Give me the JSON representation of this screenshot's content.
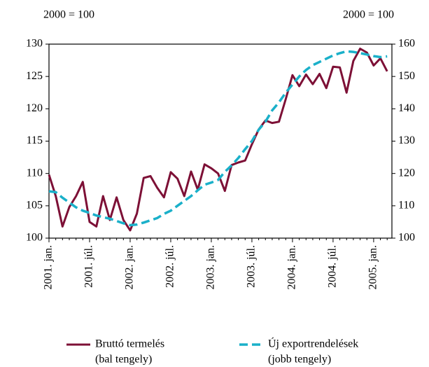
{
  "chart_data": {
    "type": "line",
    "ylabel": "2000 = 100",
    "y2label": "2000 = 100",
    "categories": [
      "2001. jan.",
      null,
      null,
      null,
      null,
      null,
      "2001. júl.",
      null,
      null,
      null,
      null,
      null,
      "2002. jan.",
      null,
      null,
      null,
      null,
      null,
      "2002. júl.",
      null,
      null,
      null,
      null,
      null,
      "2003. jan.",
      null,
      null,
      null,
      null,
      null,
      "2003. júl.",
      null,
      null,
      null,
      null,
      null,
      "2004. jan.",
      null,
      null,
      null,
      null,
      null,
      "2004. júl.",
      null,
      null,
      null,
      null,
      null,
      "2005. jan.",
      null,
      null
    ],
    "ylim": [
      100,
      130
    ],
    "yticks": [
      100,
      105,
      110,
      115,
      120,
      125,
      130
    ],
    "y2lim": [
      100,
      160
    ],
    "y2ticks": [
      100,
      110,
      120,
      130,
      140,
      150,
      160
    ],
    "series": [
      {
        "name": "Bruttó termelés",
        "sublabel": "(bal tengely)",
        "color": "#7d1036",
        "dashed": false,
        "values": [
          109.8,
          106.5,
          101.8,
          104.8,
          106.5,
          108.7,
          102.5,
          101.8,
          106.5,
          102.8,
          106.3,
          102.8,
          101.2,
          103.8,
          109.3,
          109.6,
          107.8,
          106.3,
          110.2,
          109.2,
          106.5,
          110.3,
          107.5,
          111.4,
          110.8,
          110.0,
          107.3,
          111.3,
          111.7,
          112.0,
          114.5,
          116.8,
          118.2,
          117.8,
          118.0,
          121.5,
          125.2,
          123.5,
          125.3,
          123.8,
          125.4,
          123.2,
          126.5,
          126.4,
          122.5,
          127.4,
          129.3,
          128.7,
          126.7,
          127.8,
          125.8
        ]
      },
      {
        "name": "Új exportrendelések",
        "sublabel": "(jobb tengely)",
        "color": "#1ab0c9",
        "dashed": true,
        "axis": "y2",
        "values": [
          114.5,
          114.2,
          112.5,
          111,
          109.5,
          108.5,
          107.8,
          107,
          106.5,
          106,
          105.3,
          104.6,
          104,
          104.2,
          104.8,
          105.5,
          106.2,
          107.5,
          108.5,
          110,
          111.5,
          113,
          114.8,
          116.5,
          117.2,
          118,
          120.5,
          122.5,
          124.8,
          127.5,
          130,
          133.5,
          136,
          139.5,
          142,
          145,
          147.5,
          150,
          152,
          153.5,
          154.5,
          155.5,
          156.5,
          157.2,
          157.8,
          157.6,
          157.2,
          156.8,
          156.3,
          156.0,
          156.2
        ]
      }
    ]
  }
}
